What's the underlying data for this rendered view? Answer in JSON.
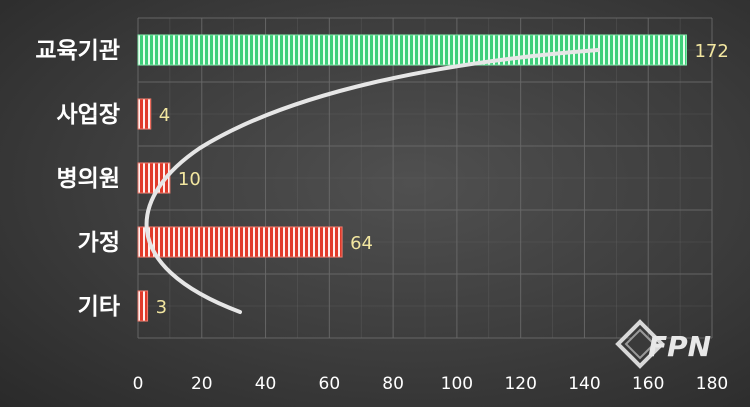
{
  "chart_data": {
    "type": "bar",
    "orientation": "horizontal",
    "categories": [
      "교육기관",
      "사업장",
      "병의원",
      "가정",
      "기타"
    ],
    "values": [
      172,
      4,
      10,
      64,
      3
    ],
    "xlim": [
      0,
      180
    ],
    "ticks": [
      "0",
      "20",
      "40",
      "60",
      "80",
      "100",
      "120",
      "140",
      "160",
      "180"
    ],
    "tick_values": [
      0,
      20,
      40,
      60,
      80,
      100,
      120,
      140,
      160,
      180
    ],
    "grid": true,
    "colors": {
      "highlight_bar": "#3ecf7a",
      "bar": "#e03a2a",
      "stripe": "#ffffff",
      "value_label": "#f2e6a0",
      "grid": "#6a6a6a",
      "trend_curve": "#e6e6e6"
    },
    "highlight_index": 0,
    "decoration": "curved-arrow-trend"
  },
  "logo": {
    "text": "FPN"
  }
}
